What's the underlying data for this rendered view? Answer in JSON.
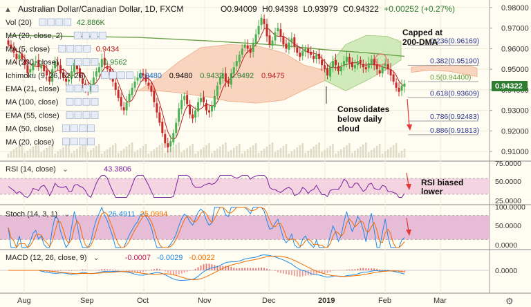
{
  "header": {
    "symbol": "Australian Dollar/Canadian Dollar, 1D, FXCM",
    "open": "O0.94009",
    "high": "H0.94398",
    "low": "L0.93979",
    "close": "C0.94322",
    "change": "+0.00252 (+0.27%)"
  },
  "indicators": [
    {
      "label": "Vol (20)",
      "values": [
        "42.886K"
      ],
      "colors": [
        "#2e7d32"
      ]
    },
    {
      "label": "MA (20, close, 2)",
      "values": [],
      "colors": []
    },
    {
      "label": "MA (5, close)",
      "values": [
        "0.9434"
      ],
      "colors": [
        "#b71c1c"
      ]
    },
    {
      "label": "MA (200, close)",
      "values": [
        "0.9562"
      ],
      "colors": [
        "#2e7d32"
      ]
    },
    {
      "label": "Ichimoku (9, 26, 52, 26)",
      "values": [
        "0.9480",
        "0.9480",
        "0.9432",
        "0.9492",
        "0.9475"
      ],
      "colors": [
        "#1565c0",
        "#000000",
        "#2e7d32",
        "#2e7d32",
        "#b71c1c"
      ]
    },
    {
      "label": "EMA (21, close)",
      "values": [],
      "colors": []
    },
    {
      "label": "MA (100, close)",
      "values": [],
      "colors": []
    },
    {
      "label": "EMA (55, close)",
      "values": [],
      "colors": []
    },
    {
      "label": "MA (50, close)",
      "values": [],
      "colors": []
    },
    {
      "label": "MA (20, close)",
      "values": [],
      "colors": []
    }
  ],
  "annotations": {
    "capped": "Capped at\n200-DMA",
    "consolidates": "Consolidates\nbelow daily\ncloud",
    "rsi_note": "RSI biased\nlower"
  },
  "rsi": {
    "label": "RSI (14, close)",
    "value": "43.3806"
  },
  "stoch": {
    "label": "Stoch (14, 3, 1)",
    "k": "26.4911",
    "d": "25.0994"
  },
  "macd": {
    "label": "MACD (12, 26, close, 9)",
    "hist": "-0.0007",
    "macd": "-0.0029",
    "signal": "-0.0022"
  },
  "price_badge": "0.94322",
  "colors": {
    "up": "#4caf50",
    "down": "#c62828",
    "cloud_bull": "#c8e6b0",
    "cloud_bear": "#f8cbb3",
    "ma200": "#6a9f4a",
    "rsi_band": "#f3d4e0",
    "stoch_band": "#e7bcd6"
  },
  "chart_data": {
    "type": "candlestick",
    "title": "Australian Dollar/Canadian Dollar, 1D, FXCM",
    "x_ticks": [
      "Aug",
      "Sep",
      "Oct",
      "Nov",
      "Dec",
      "2019",
      "Feb",
      "Mar"
    ],
    "y_ticks": [
      "0.98000",
      "0.97000",
      "0.96000",
      "0.95000",
      "0.94000",
      "0.93000",
      "0.92000",
      "0.91000"
    ],
    "ylim": [
      0.907,
      0.983
    ],
    "last_price": 0.94322,
    "fibonacci": [
      {
        "label": "0.236(0.96169)",
        "value": 0.96169
      },
      {
        "label": "0.382(0.95190)",
        "value": 0.9519
      },
      {
        "label": "0.5(0.94400)",
        "value": 0.944
      },
      {
        "label": "0.618(0.93609)",
        "value": 0.93609
      },
      {
        "label": "0.786(0.92483)",
        "value": 0.92483
      },
      {
        "label": "0.886(0.91813)",
        "value": 0.91813
      }
    ],
    "close_series": [
      0.962,
      0.96,
      0.958,
      0.955,
      0.957,
      0.955,
      0.952,
      0.948,
      0.95,
      0.953,
      0.954,
      0.951,
      0.952,
      0.949,
      0.947,
      0.944,
      0.95,
      0.954,
      0.952,
      0.948,
      0.946,
      0.944,
      0.945,
      0.949,
      0.953,
      0.95,
      0.946,
      0.943,
      0.941,
      0.94,
      0.942,
      0.946,
      0.949,
      0.951,
      0.955,
      0.952,
      0.95,
      0.947,
      0.944,
      0.94,
      0.936,
      0.932,
      0.93,
      0.934,
      0.938,
      0.941,
      0.944,
      0.946,
      0.948,
      0.947,
      0.944,
      0.942,
      0.939,
      0.934,
      0.929,
      0.924,
      0.919,
      0.914,
      0.912,
      0.915,
      0.919,
      0.924,
      0.931,
      0.935,
      0.937,
      0.933,
      0.928,
      0.926,
      0.93,
      0.934,
      0.936,
      0.934,
      0.93,
      0.929,
      0.932,
      0.937,
      0.942,
      0.946,
      0.948,
      0.944,
      0.943,
      0.948,
      0.951,
      0.954,
      0.957,
      0.96,
      0.962,
      0.96,
      0.958,
      0.963,
      0.967,
      0.971,
      0.975,
      0.972,
      0.966,
      0.962,
      0.964,
      0.968,
      0.97,
      0.966,
      0.962,
      0.96,
      0.963,
      0.965,
      0.961,
      0.958,
      0.956,
      0.959,
      0.96,
      0.958,
      0.957,
      0.955,
      0.957,
      0.955,
      0.952,
      0.95,
      0.947,
      0.951,
      0.954,
      0.952,
      0.949,
      0.951,
      0.954,
      0.956,
      0.953,
      0.951,
      0.952,
      0.954,
      0.953,
      0.951,
      0.95,
      0.953,
      0.955,
      0.952,
      0.95,
      0.948,
      0.951,
      0.953,
      0.95,
      0.947,
      0.944,
      0.941,
      0.939,
      0.942,
      0.943
    ],
    "rsi_ticks": [
      "75.0000",
      "50.0000",
      "25.0000"
    ],
    "stoch_ticks": [
      "100.0000",
      "50.0000",
      "0.0000"
    ],
    "macd_ticks": [
      "0.0000"
    ]
  }
}
